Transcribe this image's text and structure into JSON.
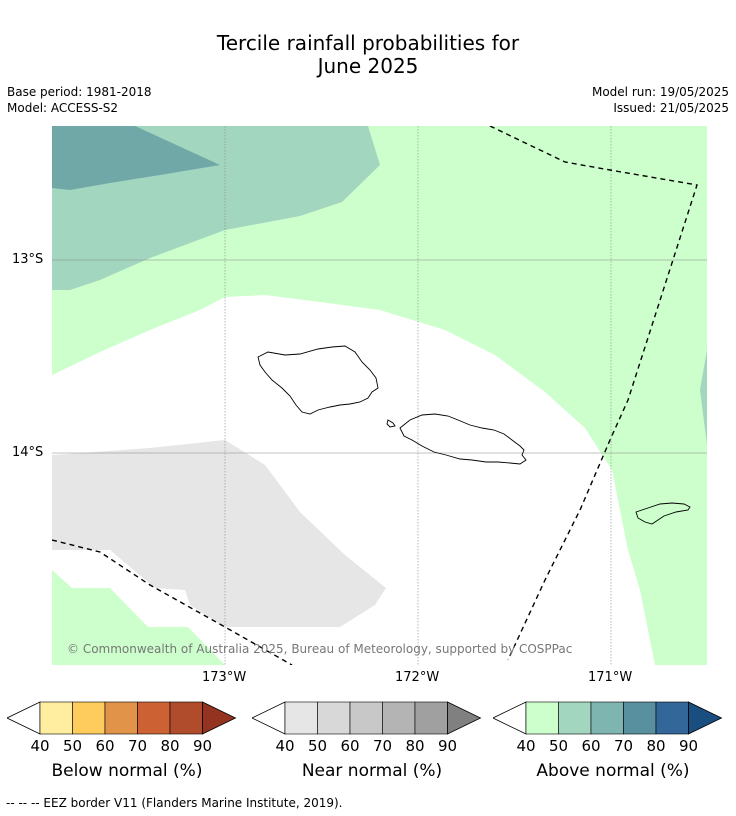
{
  "title_line1": "Tercile rainfall probabilities for",
  "title_line2": "June 2025",
  "base_period": "Base period: 1981-2018",
  "model": "Model: ACCESS-S2",
  "model_run": "Model run: 19/05/2025",
  "issued": "Issued: 21/05/2025",
  "copyright": "© Commonwealth of Australia 2025, Bureau of Meteorology, supported by COSPPac",
  "lat_ticks": [
    "13°S",
    "14°S"
  ],
  "lon_ticks": [
    "173°W",
    "172°W",
    "171°W"
  ],
  "colorbars": [
    {
      "label": "Below normal (%)",
      "ticks": [
        "40",
        "50",
        "60",
        "70",
        "80",
        "90"
      ],
      "colors": [
        "#ffffff",
        "#ffeda0",
        "#fecc5c",
        "#e1934a",
        "#cc6234",
        "#b04c2b",
        "#933320"
      ]
    },
    {
      "label": "Near normal (%)",
      "ticks": [
        "40",
        "50",
        "60",
        "70",
        "80",
        "90"
      ],
      "colors": [
        "#ffffff",
        "#e6e6e6",
        "#d8d8d8",
        "#c8c8c8",
        "#b4b4b4",
        "#a0a0a0",
        "#808080"
      ]
    },
    {
      "label": "Above normal (%)",
      "ticks": [
        "40",
        "50",
        "60",
        "70",
        "80",
        "90"
      ],
      "colors": [
        "#ffffff",
        "#ccffcc",
        "#a2d6be",
        "#7fb5b0",
        "#5890a0",
        "#336699",
        "#1a4d80"
      ]
    }
  ],
  "footnote": "--  --  -- EEZ border V11 (Flanders Marine Institute, 2019)."
}
